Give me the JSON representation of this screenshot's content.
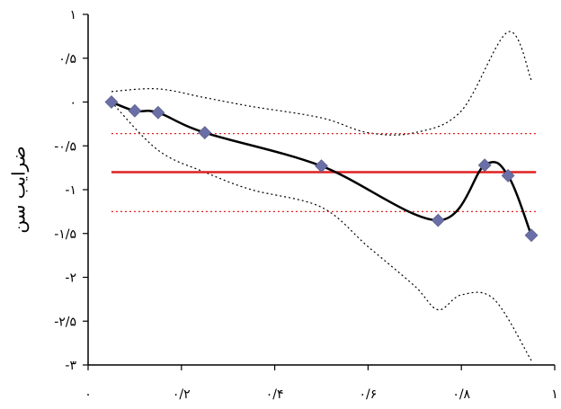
{
  "chart_data": {
    "type": "line",
    "title": "",
    "xlabel": "",
    "ylabel": "ضرایب سن",
    "xlim": [
      0,
      1
    ],
    "ylim": [
      -3,
      1
    ],
    "x_ticks": [
      {
        "value": 0,
        "label": "۰"
      },
      {
        "value": 0.2,
        "label": "۰/۲"
      },
      {
        "value": 0.4,
        "label": "۰/۴"
      },
      {
        "value": 0.6,
        "label": "۰/۶"
      },
      {
        "value": 0.8,
        "label": "۰/۸"
      },
      {
        "value": 1,
        "label": "۱"
      }
    ],
    "y_ticks": [
      {
        "value": 1,
        "label": "۱"
      },
      {
        "value": 0.5,
        "label": "۰/۵"
      },
      {
        "value": 0,
        "label": "۰"
      },
      {
        "value": -0.5,
        "label": "-۰/۵"
      },
      {
        "value": -1,
        "label": "-۱"
      },
      {
        "value": -1.5,
        "label": "-۱/۵"
      },
      {
        "value": -2,
        "label": "-۲"
      },
      {
        "value": -2.5,
        "label": "-۲/۵"
      },
      {
        "value": -3,
        "label": "-۳"
      }
    ],
    "grid": false,
    "legend": "none",
    "series": [
      {
        "role": "estimate",
        "x": [
          0.05,
          0.1,
          0.15,
          0.25,
          0.5,
          0.75,
          0.85,
          0.9,
          0.95
        ],
        "y": [
          0,
          -0.1,
          -0.12,
          -0.35,
          -0.73,
          -1.35,
          -0.72,
          -0.84,
          -1.52
        ],
        "color": "#000000",
        "marker_color": "#6b6fa8",
        "marker": "diamond"
      },
      {
        "role": "upper-band",
        "x": [
          0.05,
          0.15,
          0.25,
          0.35,
          0.5,
          0.6,
          0.7,
          0.8,
          0.9,
          0.95
        ],
        "y": [
          0.12,
          0.15,
          0.05,
          -0.05,
          -0.18,
          -0.35,
          -0.35,
          -0.1,
          0.8,
          0.25
        ],
        "color": "#000000",
        "style": "dotted"
      },
      {
        "role": "lower-band",
        "x": [
          0.05,
          0.15,
          0.25,
          0.35,
          0.5,
          0.6,
          0.7,
          0.75,
          0.8,
          0.87,
          0.95
        ],
        "y": [
          0,
          -0.55,
          -0.8,
          -1.0,
          -1.2,
          -1.65,
          -2.1,
          -2.37,
          -2.2,
          -2.25,
          -2.95
        ],
        "color": "#000000",
        "style": "dotted"
      },
      {
        "role": "mean-line",
        "x": [
          0.05,
          0.96
        ],
        "y": [
          -0.8,
          -0.8
        ],
        "color": "#e02020",
        "style": "solid"
      },
      {
        "role": "mean-upper",
        "x": [
          0.05,
          0.96
        ],
        "y": [
          -0.36,
          -0.36
        ],
        "color": "#e02020",
        "style": "dotted"
      },
      {
        "role": "mean-lower",
        "x": [
          0.05,
          0.96
        ],
        "y": [
          -1.25,
          -1.25
        ],
        "color": "#e02020",
        "style": "dotted"
      }
    ]
  }
}
